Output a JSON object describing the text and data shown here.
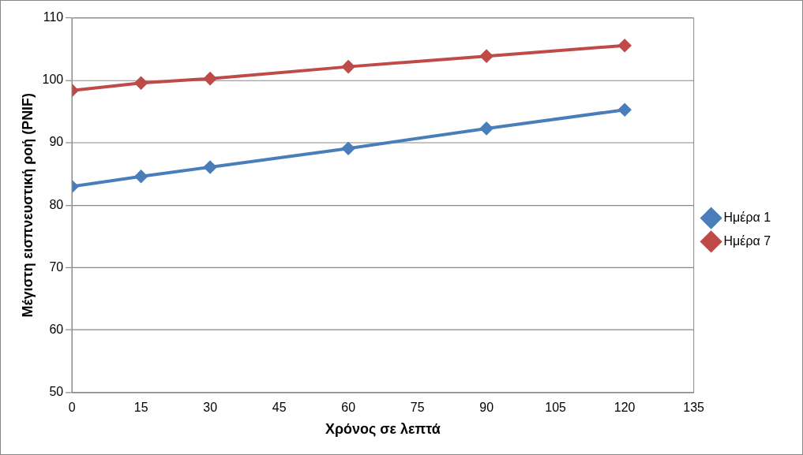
{
  "chart_data": {
    "type": "line",
    "xlabel": "Χρόνος σε λεπτά",
    "ylabel": "Μέγιστη εισπνευστική ροή (PNIF)",
    "x": [
      0,
      15,
      30,
      60,
      90,
      120
    ],
    "series": [
      {
        "name": "Ημέρα 1",
        "color": "#4a7ebb",
        "values": [
          83.0,
          84.6,
          86.1,
          89.1,
          92.3,
          95.3
        ]
      },
      {
        "name": "Ημέρα 7",
        "color": "#be4b48",
        "values": [
          98.4,
          99.6,
          100.3,
          102.2,
          103.9,
          105.6
        ]
      }
    ],
    "xlim": [
      0,
      135
    ],
    "xticks": [
      0,
      15,
      30,
      45,
      60,
      75,
      90,
      105,
      120,
      135
    ],
    "ylim": [
      50,
      110
    ],
    "yticks": [
      50,
      60,
      70,
      80,
      90,
      100,
      110
    ],
    "grid": "y",
    "legend": "right",
    "marker": "diamond",
    "line_style": "solid"
  }
}
